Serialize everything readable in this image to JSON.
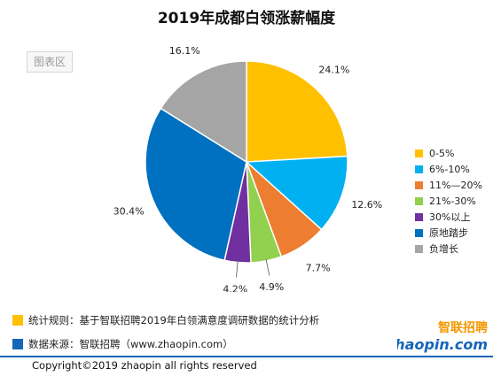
{
  "page": {
    "title": "2019年成都白领涨薪幅度",
    "tag_label": "图表区"
  },
  "chart_data": {
    "type": "pie",
    "title": "2019年成都白领涨薪幅度",
    "categories": [
      "0-5%",
      "6%-10%",
      "11%—20%",
      "21%-30%",
      "30%以上",
      "原地踏步",
      "负增长"
    ],
    "values": [
      24.1,
      12.6,
      7.7,
      4.9,
      4.2,
      30.4,
      16.1
    ],
    "value_labels": [
      "24.1%",
      "12.6%",
      "7.7%",
      "4.9%",
      "4.2%",
      "30.4%",
      "16.1%"
    ],
    "colors": [
      "#ffc000",
      "#00b0f0",
      "#ed7d31",
      "#92d050",
      "#7030a0",
      "#0070c0",
      "#a5a5a5"
    ],
    "legend_placement": "right",
    "start": "12 o'clock, clockwise"
  },
  "footer": {
    "note_1": "统计规则：基于智联招聘2019年白领满意度调研数据的统计分析",
    "note_2": "数据来源：智联招聘（www.zhaopin.com）",
    "note_1_color": "#ffc000",
    "note_2_color": "#1565b8",
    "logo_text_cn": "智联招聘",
    "logo_text_en": "zhaopin.com",
    "copyright": "Copyright©2019 zhaopin all rights reserved"
  }
}
